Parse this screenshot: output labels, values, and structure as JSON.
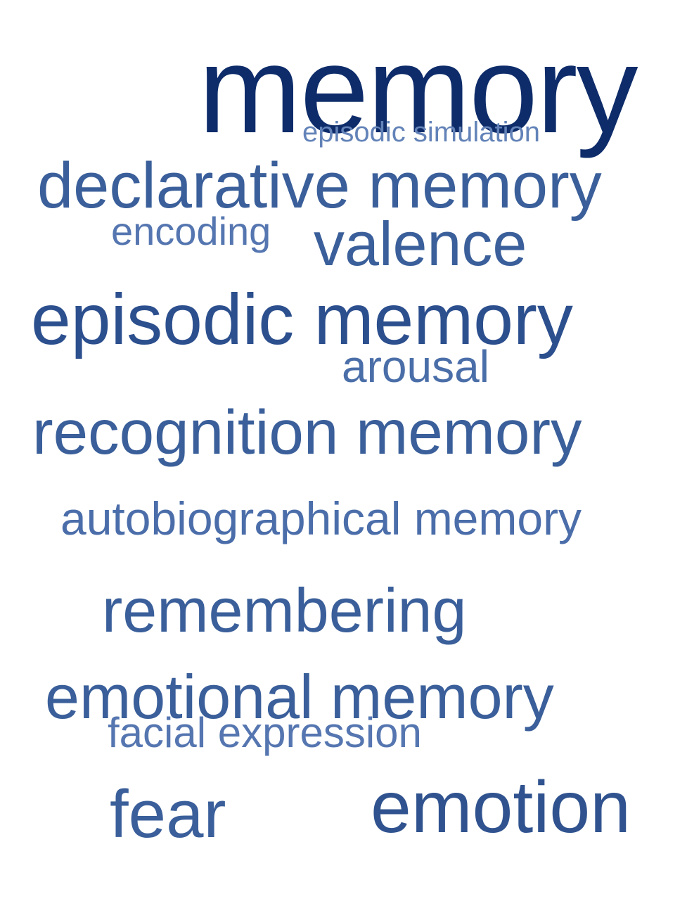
{
  "word_cloud": {
    "words": [
      {
        "text": "memory",
        "color": "#0e2c6a"
      },
      {
        "text": "episodic simulation",
        "color": "#6383b8"
      },
      {
        "text": "declarative memory",
        "color": "#3a5f9a"
      },
      {
        "text": "encoding",
        "color": "#5576b0"
      },
      {
        "text": "valence",
        "color": "#3a5f9a"
      },
      {
        "text": "episodic memory",
        "color": "#2c4f8e"
      },
      {
        "text": "arousal",
        "color": "#4a6ea8"
      },
      {
        "text": "recognition memory",
        "color": "#3a5f9a"
      },
      {
        "text": "autobiographical memory",
        "color": "#4b6eaa"
      },
      {
        "text": "remembering",
        "color": "#3a5f9a"
      },
      {
        "text": "emotional memory",
        "color": "#3a5f9a"
      },
      {
        "text": "facial expression",
        "color": "#5576b0"
      },
      {
        "text": "fear",
        "color": "#3a5f9a"
      },
      {
        "text": "emotion",
        "color": "#30538f"
      }
    ]
  }
}
